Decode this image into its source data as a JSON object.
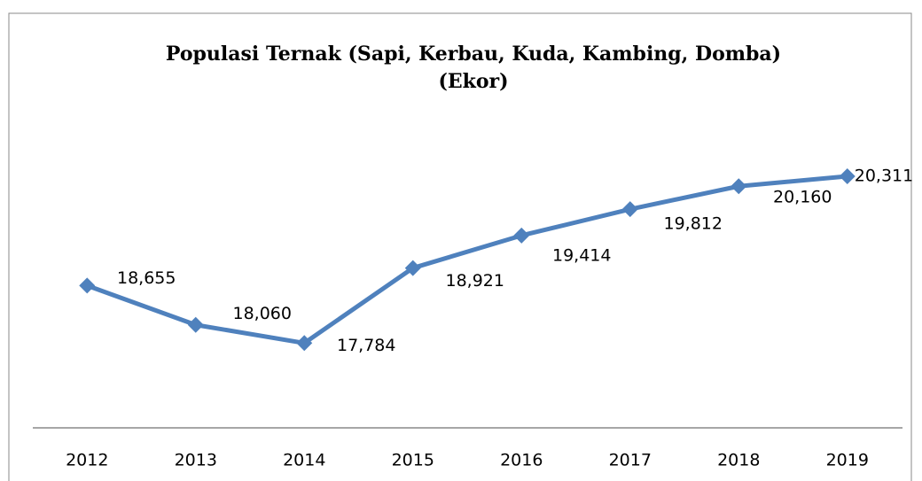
{
  "chart_data": {
    "type": "line",
    "title": "Populasi Ternak (Sapi, Kerbau, Kuda, Kambing, Domba)",
    "subtitle": "(Ekor)",
    "categories": [
      "2012",
      "2013",
      "2014",
      "2015",
      "2016",
      "2017",
      "2018",
      "2019"
    ],
    "series": [
      {
        "name": "Populasi Ternak",
        "color": "#4f81bd",
        "values": [
          18655,
          18060,
          17784,
          18921,
          19414,
          19812,
          20160,
          20311
        ],
        "value_labels": [
          "18,655",
          "18,060",
          "17,784",
          "18,921",
          "19,414",
          "19,812",
          "20,160",
          "20,311"
        ]
      }
    ],
    "ylim": [
      16500,
      20700
    ]
  }
}
